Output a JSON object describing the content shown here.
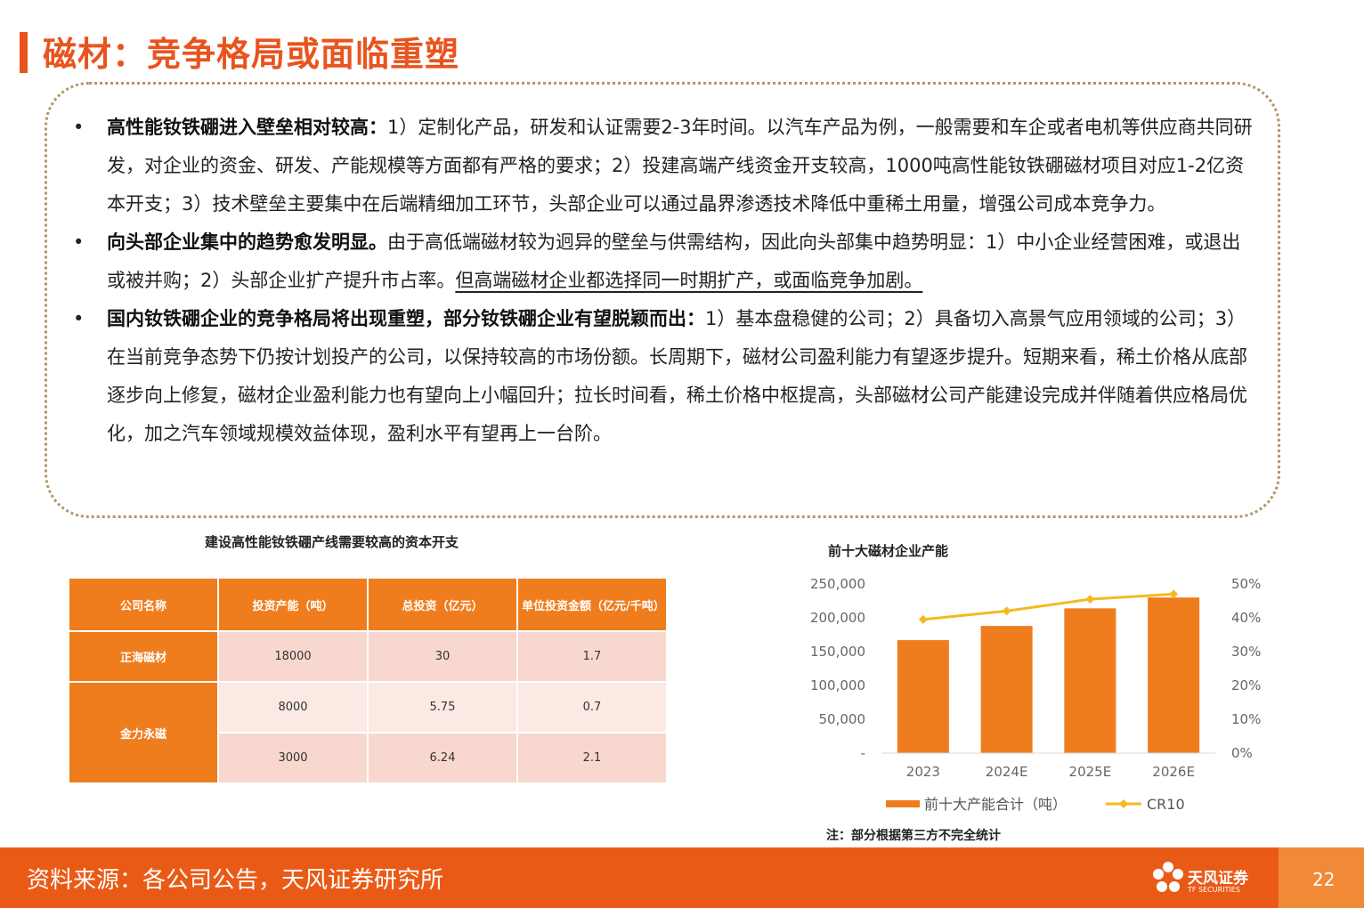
{
  "header": {
    "title": "磁材：竞争格局或面临重塑"
  },
  "bullets": [
    {
      "bold": "高性能钕铁硼进入壁垒相对较高：",
      "text": "1）定制化产品，研发和认证需要2-3年时间。以汽车产品为例，一般需要和车企或者电机等供应商共同研发，对企业的资金、研发、产能规模等方面都有严格的要求；2）投建高端产线资金开支较高，1000吨高性能钕铁硼磁材项目对应1-2亿资本开支；3）技术壁垒主要集中在后端精细加工环节，头部企业可以通过晶界渗透技术降低中重稀土用量，增强公司成本竞争力。",
      "underline": ""
    },
    {
      "bold": "向头部企业集中的趋势愈发明显。",
      "text": "由于高低端磁材较为迥异的壁垒与供需结构，因此向头部集中趋势明显：1）中小企业经营困难，或退出或被并购；2）头部企业扩产提升市占率。",
      "underline": "但高端磁材企业都选择同一时期扩产，或面临竞争加剧。"
    },
    {
      "bold": "国内钕铁硼企业的竞争格局将出现重塑，部分钕铁硼企业有望脱颖而出：",
      "text": "1）基本盘稳健的公司；2）具备切入高景气应用领域的公司；3）在当前竞争态势下仍按计划投产的公司，以保持较高的市场份额。长周期下，磁材公司盈利能力有望逐步提升。短期来看，稀土价格从底部逐步向上修复，磁材企业盈利能力也有望向上小幅回升；拉长时间看，稀土价格中枢提高，头部磁材公司产能建设完成并伴随着供应格局优化，加之汽车领域规模效益体现，盈利水平有望再上一台阶。",
      "underline": ""
    }
  ],
  "capex_table": {
    "title": "建设高性能钕铁硼产线需要较高的资本开支",
    "headers": [
      "公司名称",
      "投资产能（吨）",
      "总投资（亿元）",
      "单位投资金额（亿元/千吨）"
    ],
    "groups": [
      {
        "company": "正海磁材",
        "rows": [
          [
            "18000",
            "30",
            "1.7"
          ]
        ]
      },
      {
        "company": "金力永磁",
        "rows": [
          [
            "8000",
            "5.75",
            "0.7"
          ],
          [
            "3000",
            "6.24",
            "2.1"
          ]
        ]
      }
    ]
  },
  "chart_data": {
    "type": "bar",
    "title": "前十大磁材企业产能",
    "categories": [
      "2023",
      "2024E",
      "2025E",
      "2026E"
    ],
    "series": [
      {
        "name": "前十大产能合计（吨）",
        "type": "bar",
        "axis": "left",
        "color": "#ef7d1e",
        "values": [
          167000,
          188000,
          214000,
          230000
        ]
      },
      {
        "name": "CR10",
        "type": "line",
        "axis": "right",
        "color": "#f5b921",
        "values": [
          0.395,
          0.42,
          0.455,
          0.47
        ]
      }
    ],
    "yticks_left": [
      "-",
      "50,000",
      "100,000",
      "150,000",
      "200,000",
      "250,000"
    ],
    "yticks_right": [
      "0%",
      "10%",
      "20%",
      "30%",
      "40%",
      "50%"
    ],
    "ylim_left": [
      0,
      250000
    ],
    "ylim_right": [
      0,
      0.5
    ],
    "legend_position": "bottom",
    "note": "注：部分根据第三方不完全统计"
  },
  "footer": {
    "source": "资料来源：各公司公告，天风证券研究所",
    "logo_cn": "天风证券",
    "logo_en": "TF SECURITIES",
    "page": "22"
  },
  "colors": {
    "accent": "#e8541e",
    "bar": "#ef7d1e",
    "line": "#f5b921",
    "cell": "#f8d7cf"
  }
}
